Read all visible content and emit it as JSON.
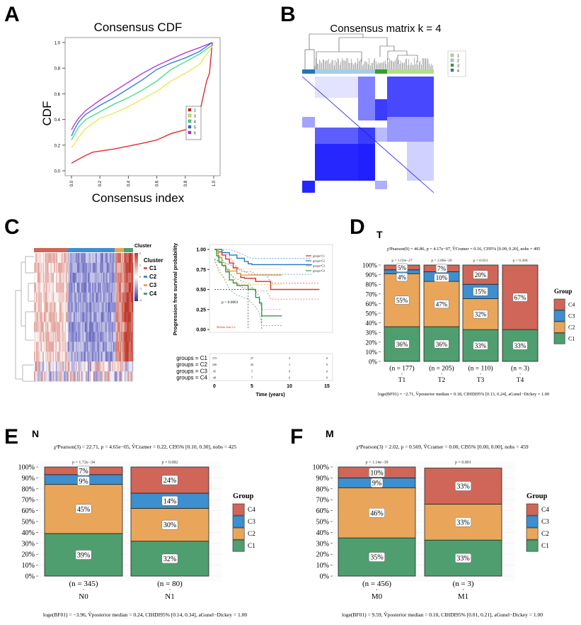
{
  "panels": {
    "labels": [
      "A",
      "B",
      "C",
      "D",
      "E",
      "F"
    ]
  },
  "colors": {
    "C1": "#4f9e6f",
    "C2": "#e9a65a",
    "C3": "#3d8fcf",
    "C4": "#cf6658"
  },
  "chart_data": [
    {
      "panel": "A",
      "type": "line",
      "title": "Consensus CDF",
      "xlabel": "Consensus index",
      "ylabel": "CDF",
      "xlim": [
        0,
        1
      ],
      "ylim": [
        0,
        1
      ],
      "grid": false,
      "legend_placement": "center-right",
      "xticks": [
        "0.0",
        "0.2",
        "0.4",
        "0.6",
        "0.8",
        "1.0"
      ],
      "yticks": [
        "0.0",
        "0.2",
        "0.4",
        "0.6",
        "0.8",
        "1.0"
      ],
      "series": [
        {
          "name": "2",
          "color": "#e41a1c",
          "x": [
            0,
            0.05,
            0.1,
            0.15,
            0.3,
            0.5,
            0.6,
            0.7,
            0.8,
            0.85,
            0.9,
            0.95,
            0.97,
            0.99
          ],
          "y": [
            0.06,
            0.09,
            0.12,
            0.145,
            0.17,
            0.215,
            0.24,
            0.29,
            0.32,
            0.34,
            0.45,
            0.7,
            0.76,
            1.0
          ]
        },
        {
          "name": "3",
          "color": "#e8e84a",
          "x": [
            0,
            0.02,
            0.05,
            0.1,
            0.2,
            0.3,
            0.4,
            0.5,
            0.6,
            0.7,
            0.8,
            0.9,
            0.99
          ],
          "y": [
            0.18,
            0.21,
            0.26,
            0.33,
            0.41,
            0.45,
            0.5,
            0.56,
            0.62,
            0.7,
            0.76,
            0.83,
            0.97
          ]
        },
        {
          "name": "4",
          "color": "#3ddc84",
          "x": [
            0,
            0.02,
            0.05,
            0.1,
            0.2,
            0.3,
            0.4,
            0.5,
            0.6,
            0.7,
            0.8,
            0.9,
            0.99
          ],
          "y": [
            0.24,
            0.28,
            0.34,
            0.4,
            0.46,
            0.52,
            0.57,
            0.63,
            0.7,
            0.79,
            0.85,
            0.91,
            0.98
          ]
        },
        {
          "name": "5",
          "color": "#2a6fdb",
          "x": [
            0,
            0.02,
            0.05,
            0.1,
            0.2,
            0.3,
            0.4,
            0.5,
            0.6,
            0.7,
            0.8,
            0.9,
            0.99
          ],
          "y": [
            0.27,
            0.32,
            0.38,
            0.44,
            0.51,
            0.57,
            0.64,
            0.71,
            0.79,
            0.84,
            0.88,
            0.93,
            1.0
          ]
        },
        {
          "name": "6",
          "color": "#b12ee0",
          "x": [
            0,
            0.02,
            0.05,
            0.1,
            0.2,
            0.3,
            0.4,
            0.5,
            0.6,
            0.7,
            0.8,
            0.9,
            0.99
          ],
          "y": [
            0.32,
            0.36,
            0.41,
            0.47,
            0.55,
            0.62,
            0.69,
            0.76,
            0.82,
            0.87,
            0.92,
            0.96,
            1.0
          ]
        }
      ]
    },
    {
      "panel": "B",
      "type": "heatmap",
      "title": "Consensus matrix k = 4",
      "cell_color": "#1a1aff",
      "legend": [
        {
          "label": "1",
          "color": "#b2df8a"
        },
        {
          "label": "2",
          "color": "#a6cee3"
        },
        {
          "label": "3",
          "color": "#33a02c"
        },
        {
          "label": "4",
          "color": "#1f78b4"
        }
      ]
    },
    {
      "panel": "C",
      "type": "heatmap",
      "annotation_title": "Cluster",
      "legend_title": "Cluster",
      "colorbar_ticks": [
        "2",
        "1",
        "0",
        "-1",
        "-2"
      ],
      "colorbar_colors": [
        "#c0392b",
        "#ffffff",
        "#2c2ca8"
      ],
      "legend": [
        {
          "label": "C1",
          "color": "#cf6658"
        },
        {
          "label": "C2",
          "color": "#3d8fcf"
        },
        {
          "label": "C3",
          "color": "#e9a65a"
        },
        {
          "label": "C4",
          "color": "#4f9e6f"
        }
      ]
    },
    {
      "panel": "C",
      "type": "line",
      "ylabel": "Progression free survival probability",
      "xlabel": "Time (years)",
      "xlim": [
        0,
        15
      ],
      "ylim": [
        0,
        1
      ],
      "xticks": [
        "0",
        "5",
        "10",
        "15"
      ],
      "yticks": [
        "0.00",
        "0.25",
        "0.50",
        "0.75",
        "1.00"
      ],
      "pvalue": "p < 0.0001",
      "median_label": "Median time:3.4",
      "legend_placement": "top-right",
      "series": [
        {
          "name": "groups=C1",
          "color": "#d73027",
          "x": [
            0,
            0.5,
            1,
            1.5,
            2,
            2.5,
            3,
            3.5,
            4,
            5,
            5.5,
            7,
            7.5,
            14
          ],
          "y": [
            1,
            0.97,
            0.93,
            0.88,
            0.83,
            0.77,
            0.7,
            0.65,
            0.64,
            0.64,
            0.6,
            0.6,
            0.5,
            0.5
          ]
        },
        {
          "name": "groups=C2",
          "color": "#1f78c8",
          "x": [
            0,
            1,
            2,
            3,
            4,
            4.5,
            5,
            13
          ],
          "y": [
            1,
            0.96,
            0.93,
            0.89,
            0.85,
            0.82,
            0.81,
            0.81
          ]
        },
        {
          "name": "groups=C3",
          "color": "#f0a030",
          "x": [
            0,
            0.5,
            1,
            1.5,
            2,
            3,
            3.5,
            9
          ],
          "y": [
            1,
            0.9,
            0.8,
            0.75,
            0.73,
            0.7,
            0.68,
            0.68
          ]
        },
        {
          "name": "groups=C4",
          "color": "#2e9b4e",
          "x": [
            0,
            0.3,
            0.6,
            1,
            1.5,
            2,
            2.5,
            3,
            4.5,
            5.5,
            6,
            6.3,
            9
          ],
          "y": [
            1,
            0.92,
            0.84,
            0.8,
            0.72,
            0.62,
            0.58,
            0.55,
            0.5,
            0.4,
            0.33,
            0.17,
            0.17
          ]
        }
      ],
      "risk_table": {
        "times": [
          "0",
          "5",
          "10",
          "15"
        ],
        "rows": [
          {
            "label": "groups = C1",
            "values": [
              "173",
              "27",
              "3",
              "0"
            ]
          },
          {
            "label": "groups = C2",
            "values": [
              "230",
              "26",
              "1",
              "0"
            ]
          },
          {
            "label": "groups = C3",
            "values": [
              "45",
              "5",
              "0",
              "0"
            ]
          },
          {
            "label": "groups = C4",
            "values": [
              "48",
              "7",
              "0",
              "0"
            ]
          }
        ]
      }
    },
    {
      "panel": "D",
      "type": "bar",
      "stacked": true,
      "title": "T",
      "subtitle": "χ²Pearson(9) = 46.86, p = 4.17e−07, V̂Cramer = 0.16, CI95% [0.09, 0.20], nobs = 495",
      "caption": "loge(BF01) = −2.71, V̂posterior median = 0.18, CIHDI95% [0.13, 0.24], aGunel−Dickey = 1.00",
      "legend_title": "Group",
      "categories": [
        "T1",
        "T2",
        "T3",
        "T4"
      ],
      "n_labels": [
        "(n = 177)",
        "(n = 205)",
        "(n = 110)",
        "(n = 3)"
      ],
      "p_labels": [
        "p = 1.03e−27",
        "p = 2.88e−20",
        "p = 0.021",
        "p = 0.300"
      ],
      "yticks": [
        "0%",
        "10%",
        "20%",
        "30%",
        "40%",
        "50%",
        "60%",
        "70%",
        "80%",
        "90%",
        "100%"
      ],
      "ylim": [
        0,
        100
      ],
      "series": [
        {
          "name": "C1",
          "values": [
            36,
            36,
            33,
            33
          ],
          "labels": [
            "36%",
            "36%",
            "33%",
            "33%"
          ]
        },
        {
          "name": "C2",
          "values": [
            55,
            47,
            32,
            0
          ],
          "labels": [
            "55%",
            "47%",
            "32%",
            ""
          ]
        },
        {
          "name": "C3",
          "values": [
            4,
            10,
            15,
            0
          ],
          "labels": [
            "4%",
            "10%",
            "15%",
            ""
          ]
        },
        {
          "name": "C4",
          "values": [
            5,
            7,
            20,
            67
          ],
          "labels": [
            "5%",
            "7%",
            "20%",
            "67%"
          ]
        }
      ]
    },
    {
      "panel": "E",
      "type": "bar",
      "stacked": true,
      "title": "N",
      "subtitle": "χ²Pearson(3) = 22.71, p = 4.65e−05, V̂Cramer = 0.22, CI95% [0.10, 0.30], nobs = 425",
      "caption": "loge(BF01) = −3.96, V̂posterior median = 0.24, CIHDI95% [0.14, 0.34], aGunel−Dickey = 1.00",
      "legend_title": "Group",
      "categories": [
        "N0",
        "N1"
      ],
      "n_labels": [
        "(n = 345)",
        "(n = 80)"
      ],
      "p_labels": [
        "p = 1.72e−34",
        "p = 0.082"
      ],
      "yticks": [
        "0%",
        "10%",
        "20%",
        "30%",
        "40%",
        "50%",
        "60%",
        "70%",
        "80%",
        "90%",
        "100%"
      ],
      "ylim": [
        0,
        100
      ],
      "series": [
        {
          "name": "C1",
          "values": [
            39,
            32
          ],
          "labels": [
            "39%",
            "32%"
          ]
        },
        {
          "name": "C2",
          "values": [
            45,
            30
          ],
          "labels": [
            "45%",
            "30%"
          ]
        },
        {
          "name": "C3",
          "values": [
            9,
            14
          ],
          "labels": [
            "9%",
            "14%"
          ]
        },
        {
          "name": "C4",
          "values": [
            7,
            24
          ],
          "labels": [
            "7%",
            "24%"
          ]
        }
      ]
    },
    {
      "panel": "F",
      "type": "bar",
      "stacked": true,
      "title": "M",
      "subtitle": "χ²Pearson(3) = 2.02, p = 0.569, V̂Cramer = 0.00, CI95% [0.00, 0.00], nobs = 459",
      "caption": "loge(BF01) = 9.59, V̂posterior median = 0.10, CIHDI95% [0.01, 0.21], aGunel−Dickey = 1.00",
      "legend_title": "Group",
      "categories": [
        "M0",
        "M1"
      ],
      "n_labels": [
        "(n = 456)",
        "(n = 3)"
      ],
      "p_labels": [
        "p = 1.14e−39",
        "p = 0.801"
      ],
      "yticks": [
        "0%",
        "10%",
        "20%",
        "30%",
        "40%",
        "50%",
        "60%",
        "70%",
        "80%",
        "90%",
        "100%"
      ],
      "ylim": [
        0,
        100
      ],
      "series": [
        {
          "name": "C1",
          "values": [
            35,
            33
          ],
          "labels": [
            "35%",
            "33%"
          ]
        },
        {
          "name": "C2",
          "values": [
            46,
            33
          ],
          "labels": [
            "46%",
            "33%"
          ]
        },
        {
          "name": "C3",
          "values": [
            9,
            0
          ],
          "labels": [
            "9%",
            ""
          ]
        },
        {
          "name": "C4",
          "values": [
            10,
            33
          ],
          "labels": [
            "10%",
            "33%"
          ]
        }
      ]
    }
  ]
}
